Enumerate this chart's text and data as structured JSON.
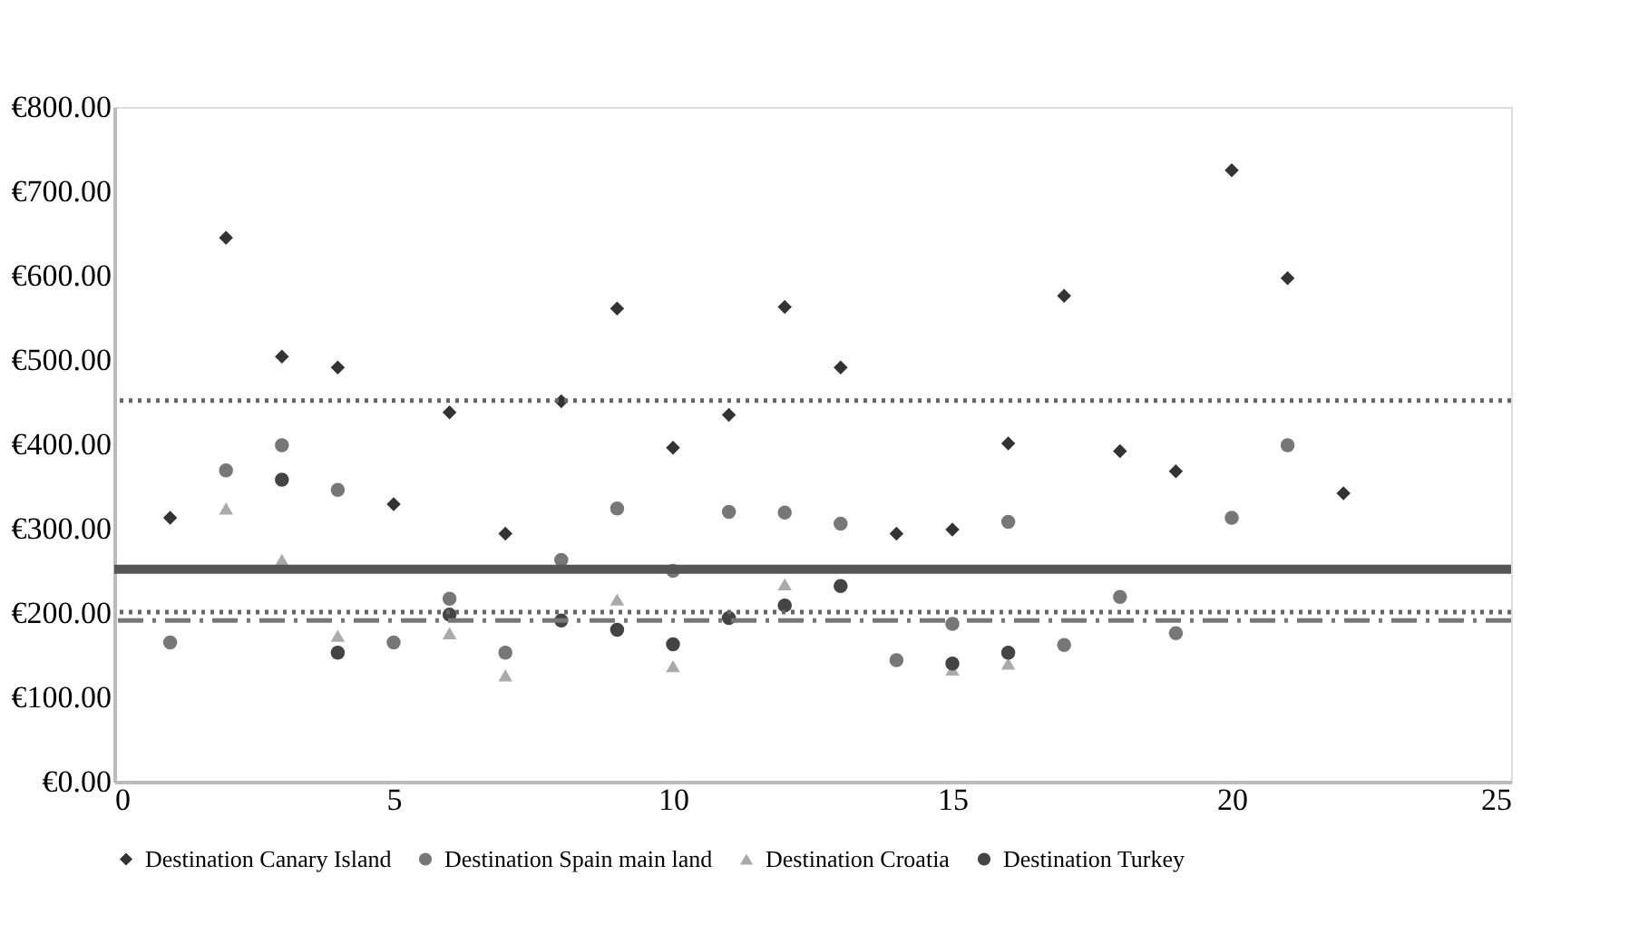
{
  "chart_data": {
    "type": "scatter",
    "xlim": [
      0,
      25
    ],
    "xticks": [
      0,
      5,
      10,
      15,
      20,
      25
    ],
    "ylim": [
      0,
      800
    ],
    "yticks": [
      {
        "value": 0,
        "label": "€0.00"
      },
      {
        "value": 100,
        "label": "€100.00"
      },
      {
        "value": 200,
        "label": "€200.00"
      },
      {
        "value": 300,
        "label": "€300.00"
      },
      {
        "value": 400,
        "label": "€400.00"
      },
      {
        "value": 500,
        "label": "€500.00"
      },
      {
        "value": 600,
        "label": "€600.00"
      },
      {
        "value": 700,
        "label": "€700.00"
      },
      {
        "value": 800,
        "label": "€800.00"
      }
    ],
    "grid": false,
    "legend": "bottom",
    "series": [
      {
        "name": "Destination Canary Island",
        "color": "#333333",
        "marker": "diamond",
        "x": [
          1,
          2,
          3,
          4,
          5,
          6,
          7,
          8,
          9,
          10,
          11,
          12,
          13,
          14,
          15,
          16,
          17,
          18,
          19,
          20,
          21,
          22
        ],
        "values": [
          313,
          645,
          504,
          491,
          329,
          438,
          294,
          451,
          561,
          396,
          435,
          563,
          491,
          294,
          299,
          401,
          576,
          392,
          368,
          725,
          597,
          342
        ]
      },
      {
        "name": "Destination Spain main land",
        "color": "#777777",
        "marker": "circle",
        "x": [
          1,
          2,
          3,
          4,
          5,
          6,
          7,
          8,
          9,
          10,
          11,
          12,
          13,
          14,
          15,
          16,
          17,
          18,
          19,
          20,
          21
        ],
        "values": [
          165,
          369,
          399,
          346,
          165,
          217,
          153,
          263,
          324,
          250,
          320,
          319,
          306,
          144,
          187,
          308,
          162,
          219,
          176,
          313,
          399
        ]
      },
      {
        "name": "Destination Croatia",
        "color": "#aaaaaa",
        "marker": "triangle",
        "x": [
          2,
          3,
          4,
          6,
          7,
          8,
          9,
          10,
          12,
          13,
          15,
          16
        ],
        "values": [
          324,
          263,
          173,
          176,
          126,
          null,
          216,
          137,
          234,
          null,
          133,
          140
        ]
      },
      {
        "name": "Destination Turkey",
        "color": "#444444",
        "marker": "circle",
        "x": [
          3,
          4,
          6,
          8,
          9,
          10,
          11,
          12,
          13,
          15,
          16
        ],
        "values": [
          358,
          153,
          198,
          191,
          180,
          163,
          194,
          209,
          232,
          140,
          153
        ]
      }
    ],
    "ref_lines": [
      {
        "axis": "y",
        "value": 452,
        "color": "#666666",
        "line_style": "dotted"
      },
      {
        "axis": "y",
        "value": 252,
        "color": "#555555",
        "line_style": "solid"
      },
      {
        "axis": "y",
        "value": 201,
        "color": "#666666",
        "line_style": "dotted"
      },
      {
        "axis": "y",
        "value": 191,
        "color": "#777777",
        "line_style": "dashed"
      }
    ]
  }
}
